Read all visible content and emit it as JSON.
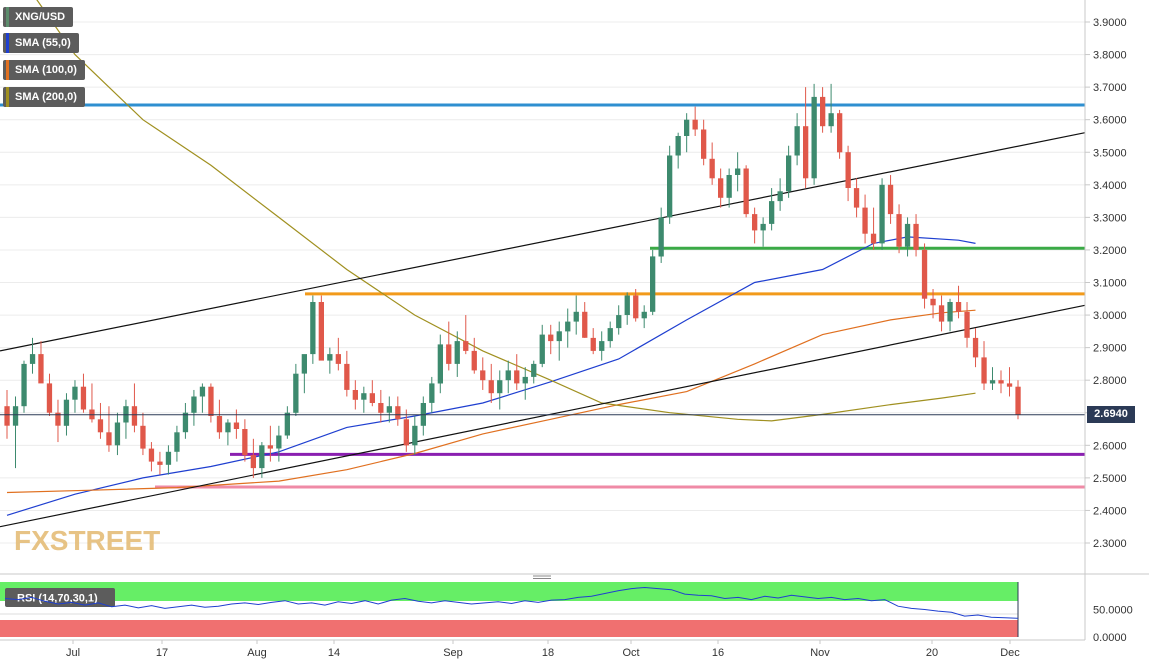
{
  "legend": [
    {
      "label": "XNG/USD",
      "color": "#5c8c6c"
    },
    {
      "label": "SMA (55,0)",
      "color": "#1f3fd0"
    },
    {
      "label": "SMA (100,0)",
      "color": "#e07020"
    },
    {
      "label": "SMA (200,0)",
      "color": "#a09020"
    }
  ],
  "price_tag": "2.6940",
  "watermark": "FXSTREET",
  "rsi_label": "RSI (14,70,30,1)",
  "chart_data": [
    {
      "type": "candlestick",
      "symbol": "XNG/USD",
      "x_labels": [
        "Jul",
        "17",
        "Aug",
        "14",
        "Sep",
        "18",
        "Oct",
        "16",
        "Nov",
        "20",
        "Dec"
      ],
      "y_ticks": [
        "3.9000",
        "3.8000",
        "3.7000",
        "3.6000",
        "3.5000",
        "3.4000",
        "3.3000",
        "3.2000",
        "3.1000",
        "3.0000",
        "2.9000",
        "2.8000",
        "2.7000",
        "2.6000",
        "2.5000",
        "2.4000",
        "2.3000"
      ],
      "ylim": [
        2.2,
        3.95
      ],
      "last_price": 2.694,
      "candle_colors": {
        "up": "#3d8a6e",
        "down": "#e0584a"
      },
      "candles": [
        [
          2.72,
          2.77,
          2.62,
          2.66
        ],
        [
          2.66,
          2.75,
          2.53,
          2.72
        ],
        [
          2.72,
          2.86,
          2.7,
          2.85
        ],
        [
          2.85,
          2.93,
          2.82,
          2.88
        ],
        [
          2.88,
          2.92,
          2.8,
          2.79
        ],
        [
          2.79,
          2.82,
          2.69,
          2.7
        ],
        [
          2.7,
          2.74,
          2.61,
          2.66
        ],
        [
          2.66,
          2.76,
          2.63,
          2.74
        ],
        [
          2.74,
          2.8,
          2.7,
          2.78
        ],
        [
          2.78,
          2.82,
          2.7,
          2.71
        ],
        [
          2.71,
          2.79,
          2.67,
          2.68
        ],
        [
          2.68,
          2.73,
          2.62,
          2.64
        ],
        [
          2.64,
          2.72,
          2.58,
          2.6
        ],
        [
          2.6,
          2.7,
          2.57,
          2.67
        ],
        [
          2.67,
          2.74,
          2.62,
          2.72
        ],
        [
          2.72,
          2.79,
          2.64,
          2.66
        ],
        [
          2.66,
          2.7,
          2.57,
          2.59
        ],
        [
          2.59,
          2.61,
          2.52,
          2.55
        ],
        [
          2.55,
          2.58,
          2.51,
          2.54
        ],
        [
          2.54,
          2.6,
          2.51,
          2.58
        ],
        [
          2.58,
          2.66,
          2.55,
          2.64
        ],
        [
          2.64,
          2.73,
          2.62,
          2.7
        ],
        [
          2.7,
          2.77,
          2.66,
          2.75
        ],
        [
          2.75,
          2.79,
          2.7,
          2.78
        ],
        [
          2.78,
          2.79,
          2.67,
          2.69
        ],
        [
          2.69,
          2.74,
          2.62,
          2.64
        ],
        [
          2.64,
          2.68,
          2.6,
          2.67
        ],
        [
          2.67,
          2.71,
          2.62,
          2.65
        ],
        [
          2.65,
          2.68,
          2.55,
          2.57
        ],
        [
          2.57,
          2.62,
          2.5,
          2.53
        ],
        [
          2.53,
          2.61,
          2.5,
          2.6
        ],
        [
          2.6,
          2.66,
          2.55,
          2.59
        ],
        [
          2.59,
          2.66,
          2.55,
          2.63
        ],
        [
          2.63,
          2.72,
          2.62,
          2.7
        ],
        [
          2.7,
          2.85,
          2.69,
          2.82
        ],
        [
          2.82,
          2.87,
          2.76,
          2.88
        ],
        [
          2.88,
          3.06,
          2.85,
          3.04
        ],
        [
          3.04,
          3.06,
          2.87,
          2.86
        ],
        [
          2.86,
          2.9,
          2.82,
          2.88
        ],
        [
          2.88,
          2.93,
          2.83,
          2.85
        ],
        [
          2.85,
          2.89,
          2.75,
          2.77
        ],
        [
          2.77,
          2.8,
          2.71,
          2.74
        ],
        [
          2.74,
          2.78,
          2.7,
          2.76
        ],
        [
          2.76,
          2.8,
          2.72,
          2.73
        ],
        [
          2.73,
          2.77,
          2.67,
          2.7
        ],
        [
          2.7,
          2.75,
          2.67,
          2.72
        ],
        [
          2.72,
          2.75,
          2.66,
          2.68
        ],
        [
          2.68,
          2.71,
          2.58,
          2.6
        ],
        [
          2.6,
          2.69,
          2.57,
          2.66
        ],
        [
          2.66,
          2.75,
          2.63,
          2.73
        ],
        [
          2.73,
          2.81,
          2.7,
          2.79
        ],
        [
          2.79,
          2.94,
          2.76,
          2.91
        ],
        [
          2.91,
          2.98,
          2.83,
          2.85
        ],
        [
          2.85,
          2.95,
          2.81,
          2.92
        ],
        [
          2.92,
          3.0,
          2.88,
          2.89
        ],
        [
          2.89,
          2.93,
          2.82,
          2.83
        ],
        [
          2.83,
          2.87,
          2.77,
          2.8
        ],
        [
          2.8,
          2.85,
          2.73,
          2.76
        ],
        [
          2.76,
          2.83,
          2.71,
          2.8
        ],
        [
          2.8,
          2.86,
          2.76,
          2.83
        ],
        [
          2.83,
          2.88,
          2.77,
          2.79
        ],
        [
          2.79,
          2.84,
          2.74,
          2.81
        ],
        [
          2.81,
          2.86,
          2.79,
          2.85
        ],
        [
          2.85,
          2.97,
          2.84,
          2.94
        ],
        [
          2.94,
          2.97,
          2.88,
          2.92
        ],
        [
          2.92,
          2.98,
          2.86,
          2.95
        ],
        [
          2.95,
          3.02,
          2.9,
          2.98
        ],
        [
          2.98,
          3.06,
          2.94,
          3.01
        ],
        [
          3.01,
          3.04,
          2.93,
          2.93
        ],
        [
          2.93,
          2.96,
          2.88,
          2.89
        ],
        [
          2.89,
          2.95,
          2.86,
          2.92
        ],
        [
          2.92,
          2.98,
          2.9,
          2.96
        ],
        [
          2.96,
          3.03,
          2.94,
          3.0
        ],
        [
          3.0,
          3.07,
          2.97,
          3.06
        ],
        [
          3.06,
          3.08,
          2.98,
          2.99
        ],
        [
          2.99,
          3.03,
          2.96,
          3.01
        ],
        [
          3.01,
          3.2,
          3.0,
          3.18
        ],
        [
          3.18,
          3.33,
          3.16,
          3.3
        ],
        [
          3.3,
          3.52,
          3.28,
          3.49
        ],
        [
          3.49,
          3.56,
          3.45,
          3.55
        ],
        [
          3.55,
          3.62,
          3.5,
          3.6
        ],
        [
          3.6,
          3.64,
          3.55,
          3.57
        ],
        [
          3.57,
          3.6,
          3.46,
          3.48
        ],
        [
          3.48,
          3.53,
          3.4,
          3.42
        ],
        [
          3.42,
          3.45,
          3.33,
          3.36
        ],
        [
          3.36,
          3.45,
          3.33,
          3.43
        ],
        [
          3.43,
          3.5,
          3.38,
          3.45
        ],
        [
          3.45,
          3.46,
          3.3,
          3.31
        ],
        [
          3.31,
          3.33,
          3.22,
          3.26
        ],
        [
          3.26,
          3.3,
          3.21,
          3.28
        ],
        [
          3.28,
          3.39,
          3.26,
          3.35
        ],
        [
          3.35,
          3.42,
          3.32,
          3.38
        ],
        [
          3.38,
          3.52,
          3.36,
          3.49
        ],
        [
          3.49,
          3.62,
          3.46,
          3.58
        ],
        [
          3.58,
          3.7,
          3.39,
          3.42
        ],
        [
          3.42,
          3.71,
          3.4,
          3.67
        ],
        [
          3.67,
          3.7,
          3.56,
          3.58
        ],
        [
          3.58,
          3.71,
          3.56,
          3.62
        ],
        [
          3.62,
          3.63,
          3.48,
          3.5
        ],
        [
          3.5,
          3.52,
          3.35,
          3.39
        ],
        [
          3.39,
          3.42,
          3.3,
          3.33
        ],
        [
          3.33,
          3.37,
          3.22,
          3.25
        ],
        [
          3.25,
          3.33,
          3.2,
          3.22
        ],
        [
          3.22,
          3.42,
          3.2,
          3.4
        ],
        [
          3.4,
          3.43,
          3.28,
          3.31
        ],
        [
          3.31,
          3.34,
          3.19,
          3.21
        ],
        [
          3.21,
          3.3,
          3.18,
          3.28
        ],
        [
          3.28,
          3.31,
          3.18,
          3.2
        ],
        [
          3.2,
          3.22,
          3.02,
          3.05
        ],
        [
          3.05,
          3.08,
          2.99,
          3.03
        ],
        [
          3.03,
          3.06,
          2.95,
          2.98
        ],
        [
          2.98,
          3.05,
          2.95,
          3.04
        ],
        [
          3.04,
          3.09,
          2.99,
          3.01
        ],
        [
          3.01,
          3.04,
          2.9,
          2.93
        ],
        [
          2.93,
          2.96,
          2.84,
          2.87
        ],
        [
          2.87,
          2.92,
          2.77,
          2.79
        ],
        [
          2.79,
          2.84,
          2.77,
          2.8
        ],
        [
          2.8,
          2.83,
          2.76,
          2.79
        ],
        [
          2.79,
          2.84,
          2.75,
          2.78
        ],
        [
          2.78,
          2.8,
          2.68,
          2.694
        ]
      ],
      "sma": [
        {
          "name": "SMA (55,0)",
          "color": "#1f3fd0",
          "points": [
            [
              0,
              2.385
            ],
            [
              8,
              2.45
            ],
            [
              16,
              2.5
            ],
            [
              24,
              2.535
            ],
            [
              32,
              2.58
            ],
            [
              40,
              2.655
            ],
            [
              48,
              2.69
            ],
            [
              56,
              2.73
            ],
            [
              64,
              2.795
            ],
            [
              72,
              2.865
            ],
            [
              80,
              2.985
            ],
            [
              88,
              3.1
            ],
            [
              96,
              3.14
            ],
            [
              102,
              3.22
            ],
            [
              106,
              3.24
            ],
            [
              112,
              3.23
            ],
            [
              114,
              3.22
            ]
          ]
        },
        {
          "name": "SMA (100,0)",
          "color": "#e07020",
          "points": [
            [
              0,
              2.455
            ],
            [
              10,
              2.462
            ],
            [
              20,
              2.47
            ],
            [
              32,
              2.49
            ],
            [
              40,
              2.525
            ],
            [
              48,
              2.575
            ],
            [
              56,
              2.635
            ],
            [
              64,
              2.68
            ],
            [
              72,
              2.725
            ],
            [
              80,
              2.765
            ],
            [
              88,
              2.85
            ],
            [
              96,
              2.94
            ],
            [
              104,
              2.985
            ],
            [
              110,
              3.007
            ],
            [
              114,
              3.015
            ]
          ]
        },
        {
          "name": "SMA (200,0)",
          "color": "#a09020",
          "points": [
            [
              0,
              4.1
            ],
            [
              8,
              3.8
            ],
            [
              16,
              3.6
            ],
            [
              24,
              3.46
            ],
            [
              32,
              3.3
            ],
            [
              40,
              3.14
            ],
            [
              48,
              3.0
            ],
            [
              56,
              2.89
            ],
            [
              64,
              2.8
            ],
            [
              70,
              2.73
            ],
            [
              78,
              2.7
            ],
            [
              86,
              2.68
            ],
            [
              90,
              2.675
            ],
            [
              96,
              2.695
            ],
            [
              104,
              2.725
            ],
            [
              110,
              2.745
            ],
            [
              114,
              2.76
            ]
          ]
        }
      ],
      "trendlines": [
        [
          2.89,
          3.56
        ],
        [
          2.35,
          3.03
        ]
      ],
      "levels": [
        {
          "y": 3.645,
          "color": "#2e8fd0"
        },
        {
          "y": 3.205,
          "color": "#3aaa46"
        },
        {
          "y": 3.065,
          "color": "#f29a1a"
        },
        {
          "y": 2.572,
          "color": "#8a1fb0"
        },
        {
          "y": 2.472,
          "color": "#ef8aa6"
        }
      ]
    },
    {
      "type": "line",
      "title": "RSI (14,70,30,1)",
      "y_ticks": [
        "50.0000",
        "0.0000"
      ],
      "ylim": [
        0,
        100
      ],
      "overbought": 70,
      "oversold": 30,
      "values": [
        70,
        68,
        72,
        65,
        60,
        63,
        58,
        62,
        55,
        58,
        53,
        57,
        52,
        55,
        58,
        54,
        56,
        60,
        62,
        59,
        63,
        66,
        60,
        62,
        58,
        64,
        61,
        66,
        60,
        67,
        70,
        65,
        62,
        66,
        63,
        60,
        62,
        64,
        61,
        66,
        63,
        67,
        68,
        72,
        74,
        79,
        84,
        88,
        90,
        88,
        86,
        78,
        76,
        75,
        70,
        72,
        68,
        74,
        71,
        76,
        73,
        70,
        72,
        68,
        70,
        66,
        68,
        56,
        52,
        50,
        47,
        45,
        38,
        40,
        36,
        35,
        34
      ]
    }
  ]
}
